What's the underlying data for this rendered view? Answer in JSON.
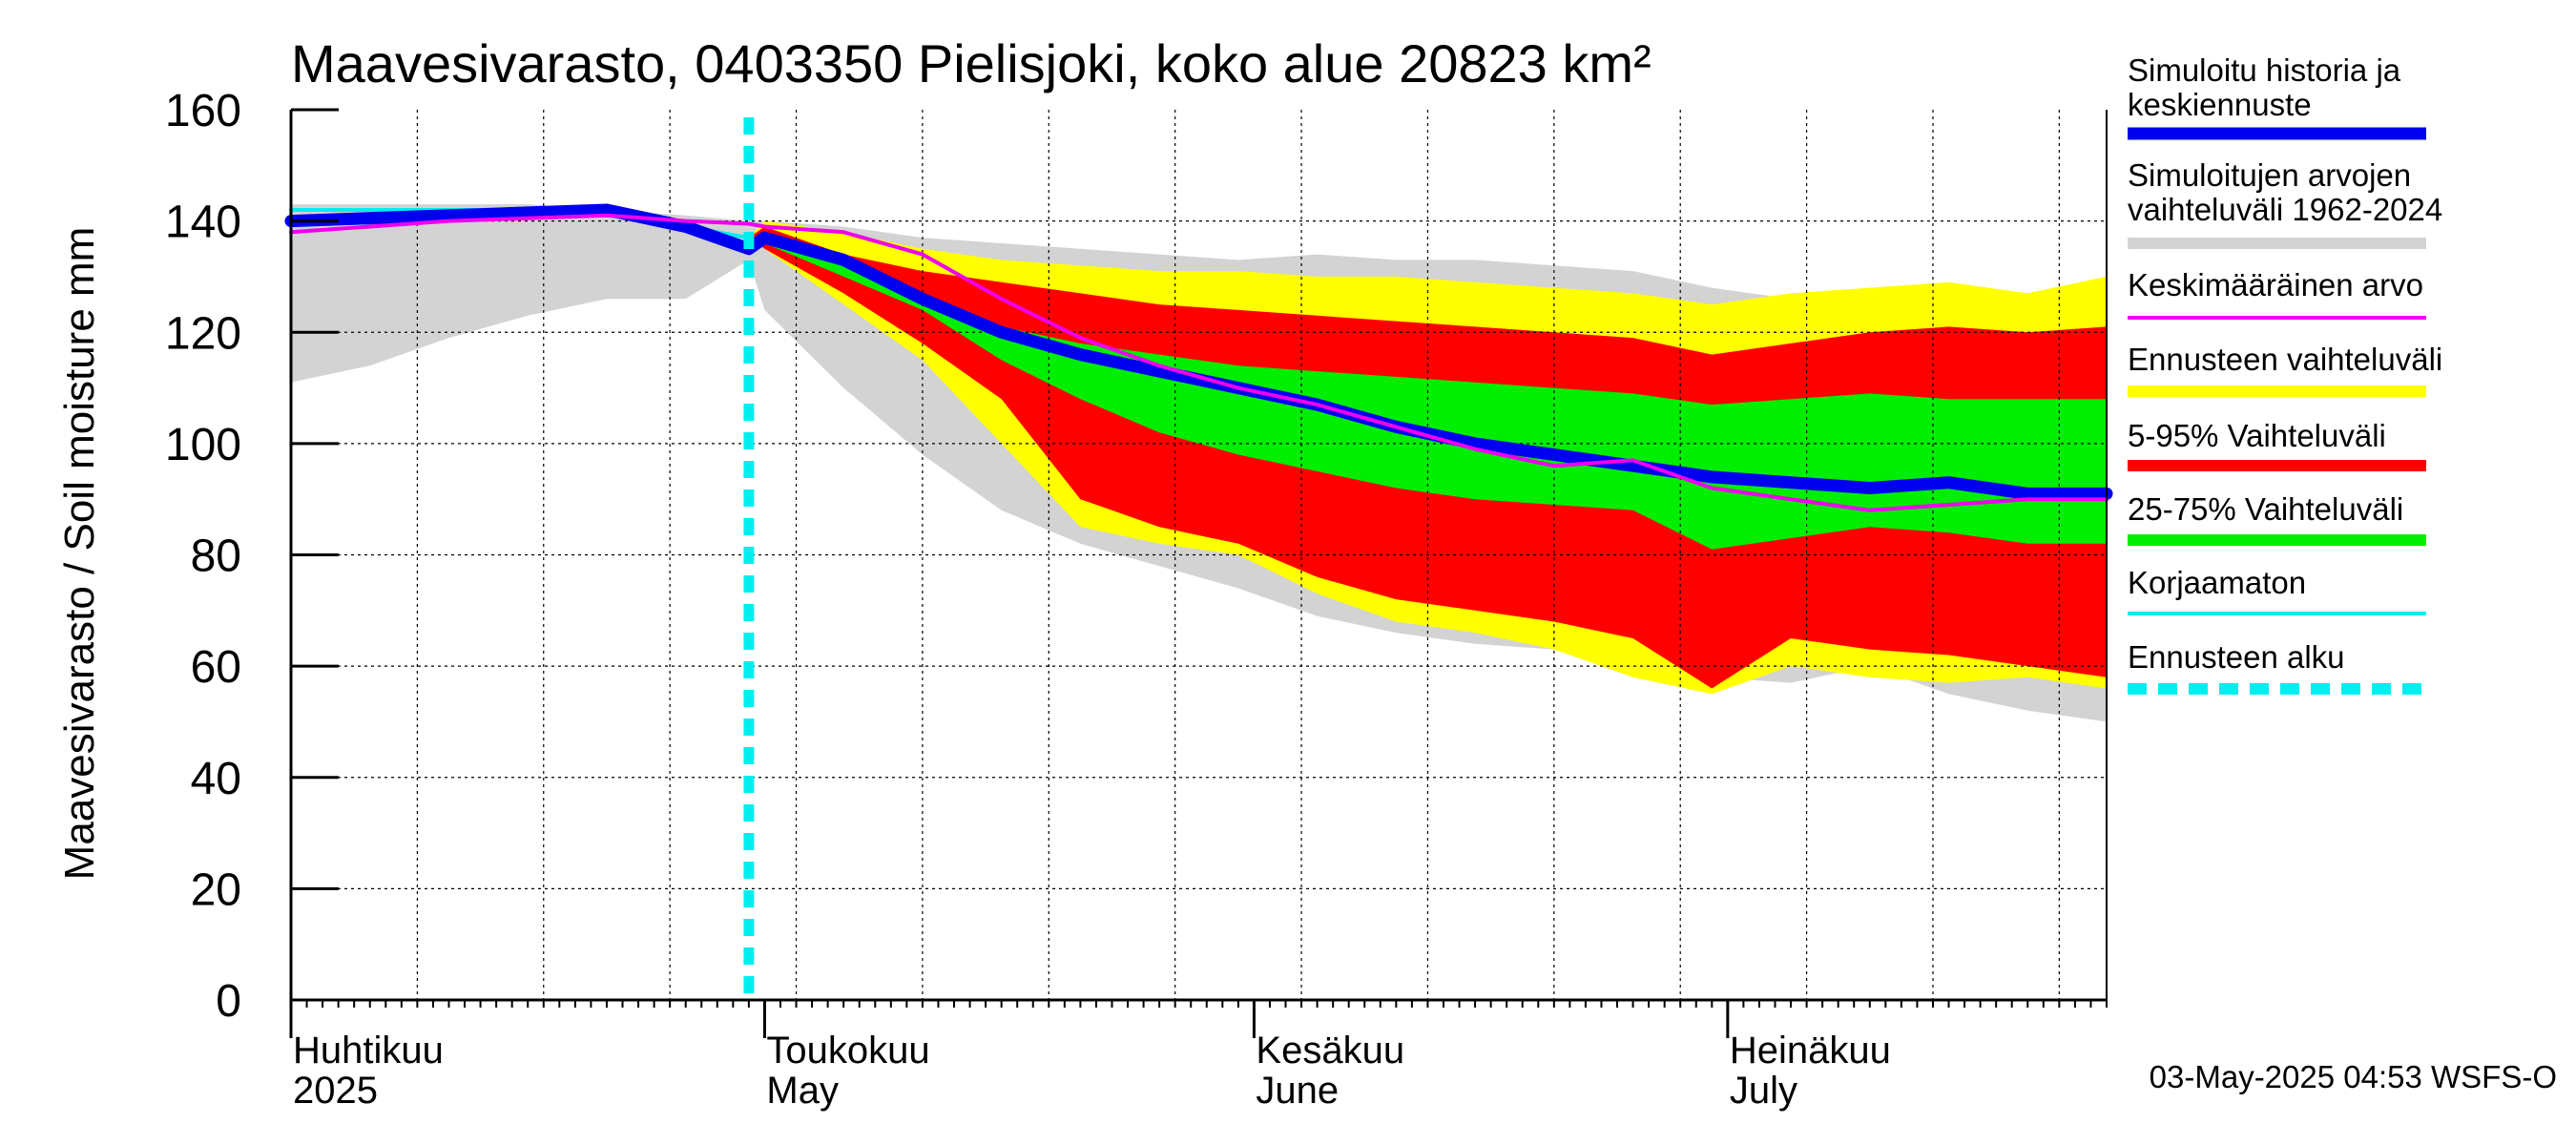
{
  "chart_data": {
    "type": "area",
    "title": "Maavesivarasto, 0403350 Pielisjoki, koko alue 20823 km²",
    "ylabel": "Maavesivarasto / Soil moisture   mm",
    "xlabel": "",
    "ylim": [
      0,
      160
    ],
    "yticks": [
      0,
      20,
      40,
      60,
      80,
      100,
      120,
      140,
      160
    ],
    "xlim_days": [
      0,
      115
    ],
    "forecast_start_day": 29,
    "months": [
      {
        "fi": "Huhtikuu",
        "en": "2025",
        "day": 0
      },
      {
        "fi": "Toukokuu",
        "en": "May",
        "day": 30
      },
      {
        "fi": "Kesäkuu",
        "en": "June",
        "day": 61
      },
      {
        "fi": "Heinäkuu",
        "en": "July",
        "day": 91
      }
    ],
    "days": [
      0,
      5,
      10,
      15,
      20,
      25,
      29,
      30,
      35,
      40,
      45,
      50,
      55,
      60,
      65,
      70,
      75,
      80,
      85,
      90,
      95,
      100,
      105,
      110,
      115
    ],
    "series": [
      {
        "name": "Simuloitujen arvojen vaihteluväli 1962-2024",
        "role": "hist_range",
        "color": "#d3d3d3",
        "lower": [
          111,
          114,
          119,
          123,
          126,
          126,
          133,
          124,
          110,
          98,
          88,
          82,
          78,
          74,
          69,
          66,
          64,
          63,
          62,
          58,
          57,
          60,
          55,
          52,
          50
        ],
        "upper": [
          143,
          143,
          143,
          143,
          142,
          141,
          140,
          140,
          139,
          137,
          136,
          135,
          134,
          133,
          134,
          133,
          133,
          132,
          131,
          128,
          126,
          127,
          128,
          127,
          129
        ]
      },
      {
        "name": "Ennusteen vaihteluväli",
        "role": "forecast_range",
        "color": "#ffff00",
        "lower": [
          null,
          null,
          null,
          null,
          null,
          null,
          137,
          135,
          125,
          115,
          100,
          85,
          82,
          80,
          73,
          68,
          66,
          63,
          58,
          55,
          60,
          58,
          57,
          58,
          56
        ],
        "upper": [
          null,
          null,
          null,
          null,
          null,
          null,
          137,
          140,
          138,
          135,
          133,
          132,
          131,
          131,
          130,
          130,
          129,
          128,
          127,
          125,
          127,
          128,
          129,
          127,
          130
        ]
      },
      {
        "name": "5-95% Vaihteluväli",
        "role": "p5_95",
        "color": "#ff0000",
        "lower": [
          null,
          null,
          null,
          null,
          null,
          null,
          137,
          135,
          127,
          118,
          108,
          90,
          85,
          82,
          76,
          72,
          70,
          68,
          65,
          56,
          65,
          63,
          62,
          60,
          58
        ],
        "upper": [
          null,
          null,
          null,
          null,
          null,
          null,
          137,
          139,
          134,
          131,
          129,
          127,
          125,
          124,
          123,
          122,
          121,
          120,
          119,
          116,
          118,
          120,
          121,
          120,
          121
        ]
      },
      {
        "name": "25-75% Vaihteluväli",
        "role": "p25_75",
        "color": "#00ee00",
        "lower": [
          null,
          null,
          null,
          null,
          null,
          null,
          137,
          136,
          130,
          124,
          115,
          108,
          102,
          98,
          95,
          92,
          90,
          89,
          88,
          81,
          83,
          85,
          84,
          82,
          82
        ],
        "upper": [
          null,
          null,
          null,
          null,
          null,
          null,
          137,
          137,
          133,
          127,
          121,
          118,
          116,
          114,
          113,
          112,
          111,
          110,
          109,
          107,
          108,
          109,
          108,
          108,
          108
        ]
      },
      {
        "name": "Simuloitu historia ja keskiennuste",
        "role": "median",
        "color": "#0000ee",
        "values": [
          140,
          140.5,
          141,
          141.5,
          142,
          139,
          135,
          137,
          133,
          126,
          120,
          116,
          113,
          110,
          107,
          103,
          100,
          98,
          96,
          94,
          93,
          92,
          93,
          91,
          91
        ]
      },
      {
        "name": "Keskimääräinen arvo",
        "role": "mean",
        "color": "#ee00ee",
        "values": [
          138,
          139,
          140,
          140.5,
          141,
          140,
          139.5,
          139,
          138,
          134,
          126,
          119,
          114,
          110,
          107,
          103,
          99,
          96,
          97,
          92,
          90,
          88,
          89,
          90,
          90
        ]
      },
      {
        "name": "Korjaamaton",
        "role": "uncorrected",
        "color": "#00eeee",
        "values": [
          142,
          142,
          142,
          142,
          141,
          139,
          137,
          null,
          null,
          null,
          null,
          null,
          null,
          null,
          null,
          null,
          null,
          null,
          null,
          null,
          null,
          null,
          null,
          null,
          null
        ]
      }
    ],
    "legend": [
      {
        "label": "Simuloitu historia ja keskiennuste",
        "color": "#0000ee",
        "style": "solid"
      },
      {
        "label": "Simuloitujen arvojen vaihteluväli 1962-2024",
        "color": "#d3d3d3",
        "style": "solid"
      },
      {
        "label": "Keskimääräinen arvo",
        "color": "#ee00ee",
        "style": "solid"
      },
      {
        "label": "Ennusteen vaihteluväli",
        "color": "#ffff00",
        "style": "solid"
      },
      {
        "label": "5-95% Vaihteluväli",
        "color": "#ff0000",
        "style": "solid"
      },
      {
        "label": "25-75% Vaihteluväli",
        "color": "#00ee00",
        "style": "solid"
      },
      {
        "label": "Korjaamaton",
        "color": "#00eeee",
        "style": "solid"
      },
      {
        "label": "Ennusteen alku",
        "color": "#00eeee",
        "style": "dashed"
      }
    ],
    "legend_position": "right",
    "grid": true
  },
  "footer": "03-May-2025 04:53 WSFS-O"
}
